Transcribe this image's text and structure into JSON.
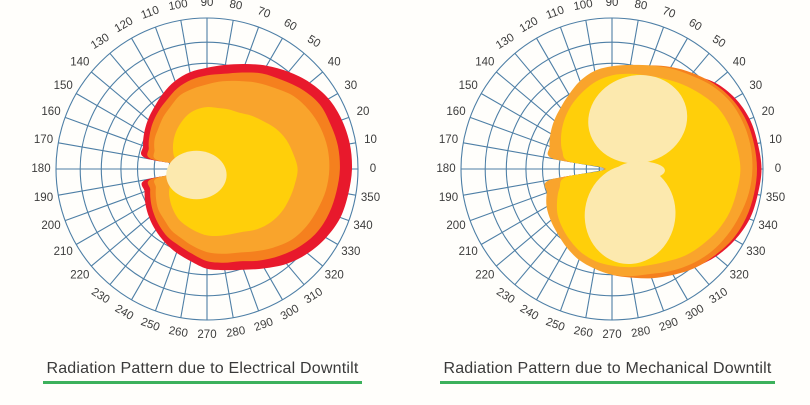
{
  "palette": {
    "red": "#e8192c",
    "dark_orange": "#f5801e",
    "orange": "#f9a42c",
    "yellow": "#ffcf0a",
    "cream": "#fce9ae",
    "grid": "#4e7fa6",
    "angle_label": "#3c3c3c",
    "caption_text": "#3a3a3a",
    "underline_green": "#3cb15c",
    "background": "#fffefb"
  },
  "chart_data": [
    {
      "type": "polar",
      "title": "Radiation Pattern due to Electrical Downtilt",
      "angle_unit": "degrees",
      "angle_step": 10,
      "angle_labels": [
        "0",
        "10",
        "20",
        "30",
        "40",
        "50",
        "60",
        "70",
        "80",
        "90",
        "100",
        "110",
        "120",
        "130",
        "140",
        "150",
        "160",
        "170",
        "180",
        "190",
        "200",
        "210",
        "220",
        "230",
        "240",
        "250",
        "260",
        "270",
        "280",
        "290",
        "300",
        "310",
        "320",
        "330",
        "340",
        "350"
      ],
      "grid": {
        "rings": [
          0.085,
          0.17,
          0.25,
          0.35,
          0.46,
          0.57,
          0.7,
          0.84,
          1.0
        ],
        "spokes_every_deg": 10
      },
      "series": [
        {
          "name": "outer-red-lobe",
          "color_key": "red",
          "values": [
            0.96,
            0.96,
            0.95,
            0.93,
            0.89,
            0.84,
            0.79,
            0.74,
            0.7,
            0.67,
            0.65,
            0.62,
            0.58,
            0.54,
            0.51,
            0.48,
            0.45,
            0.41,
            0.05,
            0.41,
            0.44,
            0.47,
            0.5,
            0.53,
            0.56,
            0.59,
            0.62,
            0.66,
            0.68,
            0.71,
            0.76,
            0.82,
            0.87,
            0.91,
            0.94,
            0.95
          ]
        },
        {
          "name": "dark-orange-lobe",
          "color_key": "dark_orange",
          "values": [
            0.88,
            0.88,
            0.87,
            0.86,
            0.82,
            0.77,
            0.73,
            0.68,
            0.64,
            0.62,
            0.6,
            0.57,
            0.53,
            0.5,
            0.47,
            0.44,
            0.41,
            0.37,
            0.04,
            0.37,
            0.4,
            0.43,
            0.46,
            0.49,
            0.52,
            0.54,
            0.57,
            0.61,
            0.63,
            0.65,
            0.7,
            0.75,
            0.8,
            0.84,
            0.86,
            0.87
          ]
        },
        {
          "name": "orange-lobe",
          "color_key": "orange",
          "values": [
            0.81,
            0.81,
            0.8,
            0.78,
            0.75,
            0.7,
            0.66,
            0.62,
            0.59,
            0.56,
            0.54,
            0.52,
            0.48,
            0.45,
            0.42,
            0.4,
            0.37,
            0.33,
            0.04,
            0.33,
            0.36,
            0.39,
            0.42,
            0.44,
            0.47,
            0.49,
            0.52,
            0.55,
            0.57,
            0.59,
            0.63,
            0.68,
            0.73,
            0.76,
            0.78,
            0.8
          ]
        },
        {
          "name": "yellow-core",
          "color_key": "yellow",
          "values": [
            0.6,
            0.58,
            0.56,
            0.53,
            0.49,
            0.46,
            0.43,
            0.42,
            0.41,
            0.41,
            0.4,
            0.38,
            0.35,
            0.32,
            0.29,
            0.26,
            0.23,
            0.18,
            0.03,
            0.2,
            0.25,
            0.29,
            0.32,
            0.35,
            0.38,
            0.4,
            0.42,
            0.44,
            0.45,
            0.46,
            0.48,
            0.52,
            0.55,
            0.57,
            0.58,
            0.59
          ]
        }
      ],
      "ellipses": [
        {
          "name": "cream-center-spot",
          "color_key": "cream",
          "cx": -0.07,
          "cy": 0.04,
          "rx": 0.2,
          "ry": 0.16,
          "rot": 0
        }
      ]
    },
    {
      "type": "polar",
      "title": "Radiation Pattern due to Mechanical Downtilt",
      "angle_unit": "degrees",
      "angle_step": 10,
      "angle_labels": [
        "0",
        "10",
        "20",
        "30",
        "40",
        "50",
        "60",
        "70",
        "80",
        "90",
        "100",
        "110",
        "120",
        "130",
        "140",
        "150",
        "160",
        "170",
        "180",
        "190",
        "200",
        "210",
        "220",
        "230",
        "240",
        "250",
        "260",
        "270",
        "280",
        "290",
        "300",
        "310",
        "320",
        "330",
        "340",
        "350"
      ],
      "grid": {
        "rings": [
          0.085,
          0.17,
          0.25,
          0.35,
          0.46,
          0.57,
          0.7,
          0.84,
          1.0
        ],
        "spokes_every_deg": 10
      },
      "series": [
        {
          "name": "outer-red-crescent",
          "color_key": "red",
          "values": [
            0.99,
            0.98,
            0.97,
            0.94,
            0.89,
            0.81,
            0.73,
            0.67,
            0.62,
            0.58,
            0.55,
            0.52,
            0.48,
            0.45,
            0.42,
            0.39,
            0.36,
            0.33,
            0.04,
            0.36,
            0.4,
            0.44,
            0.48,
            0.52,
            0.56,
            0.6,
            0.64,
            0.68,
            0.71,
            0.75,
            0.8,
            0.85,
            0.9,
            0.94,
            0.97,
            0.98
          ]
        },
        {
          "name": "dark-orange-crescent",
          "color_key": "dark_orange",
          "values": [
            0.96,
            0.955,
            0.945,
            0.92,
            0.88,
            0.83,
            0.78,
            0.73,
            0.68,
            0.62,
            0.58,
            0.54,
            0.5,
            0.46,
            0.43,
            0.4,
            0.37,
            0.34,
            0.04,
            0.37,
            0.42,
            0.46,
            0.5,
            0.54,
            0.58,
            0.62,
            0.66,
            0.7,
            0.73,
            0.77,
            0.81,
            0.855,
            0.89,
            0.925,
            0.945,
            0.955
          ]
        },
        {
          "name": "orange-lobe",
          "color_key": "orange",
          "values": [
            0.93,
            0.93,
            0.92,
            0.9,
            0.86,
            0.81,
            0.77,
            0.73,
            0.7,
            0.68,
            0.66,
            0.62,
            0.57,
            0.53,
            0.5,
            0.47,
            0.44,
            0.4,
            0.05,
            0.42,
            0.46,
            0.5,
            0.53,
            0.56,
            0.6,
            0.64,
            0.67,
            0.7,
            0.72,
            0.74,
            0.78,
            0.82,
            0.855,
            0.88,
            0.9,
            0.92
          ]
        },
        {
          "name": "yellow-lobe",
          "color_key": "yellow",
          "values": [
            0.85,
            0.84,
            0.83,
            0.81,
            0.77,
            0.73,
            0.69,
            0.66,
            0.64,
            0.62,
            0.59,
            0.55,
            0.51,
            0.47,
            0.43,
            0.39,
            0.35,
            0.29,
            0.04,
            0.31,
            0.37,
            0.42,
            0.47,
            0.51,
            0.55,
            0.59,
            0.62,
            0.64,
            0.66,
            0.68,
            0.71,
            0.75,
            0.78,
            0.81,
            0.83,
            0.84
          ]
        }
      ],
      "ellipses": [
        {
          "name": "cream-upper-lobe",
          "color_key": "cream",
          "cx": 0.17,
          "cy": -0.33,
          "rx": 0.33,
          "ry": 0.29,
          "rot": -14
        },
        {
          "name": "cream-lower-lobe",
          "color_key": "cream",
          "cx": 0.12,
          "cy": 0.3,
          "rx": 0.3,
          "ry": 0.33,
          "rot": 8
        },
        {
          "name": "cream-center-petal",
          "color_key": "cream",
          "cx": 0.19,
          "cy": 0.01,
          "rx": 0.16,
          "ry": 0.06,
          "rot": 0
        }
      ]
    }
  ]
}
